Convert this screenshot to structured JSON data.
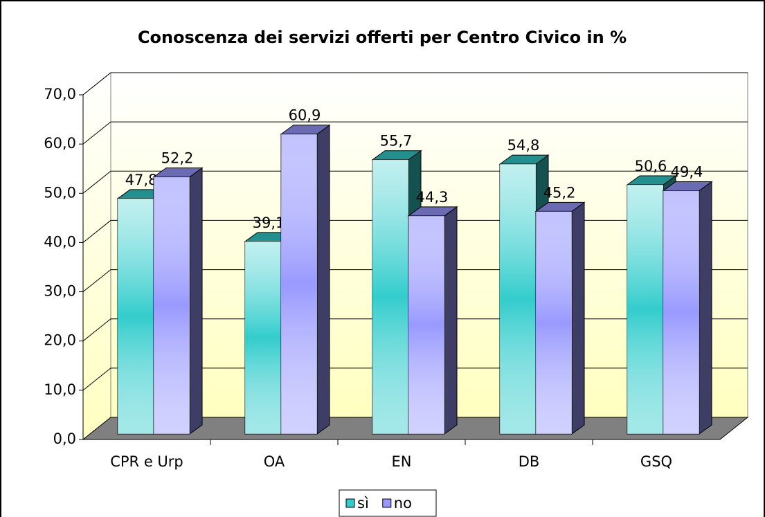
{
  "chart_data": {
    "type": "bar3d",
    "title": "Conoscenza dei servizi offerti per Centro Civico in %",
    "categories": [
      "CPR e Urp",
      "OA",
      "EN",
      "DB",
      "GSQ"
    ],
    "series": [
      {
        "name": "sì",
        "color": "#33cccc",
        "values": [
          47.8,
          39.1,
          55.7,
          54.8,
          50.6
        ],
        "value_labels": [
          "47,8",
          "39,1",
          "55,7",
          "54,8",
          "50,6"
        ]
      },
      {
        "name": "no",
        "color": "#9999ff",
        "values": [
          52.2,
          60.9,
          44.3,
          45.2,
          49.4
        ],
        "value_labels": [
          "52,2",
          "60,9",
          "44,3",
          "45,2",
          "49,4"
        ]
      }
    ],
    "ylim": [
      0,
      70
    ],
    "yticks": [
      {
        "value": 0,
        "label": "0,0"
      },
      {
        "value": 10,
        "label": "10,0"
      },
      {
        "value": 20,
        "label": "20,0"
      },
      {
        "value": 30,
        "label": "30,0"
      },
      {
        "value": 40,
        "label": "40,0"
      },
      {
        "value": 50,
        "label": "50,0"
      },
      {
        "value": 60,
        "label": "60,0"
      },
      {
        "value": 70,
        "label": "70,0"
      }
    ],
    "grid": true,
    "legend": "bottom"
  }
}
